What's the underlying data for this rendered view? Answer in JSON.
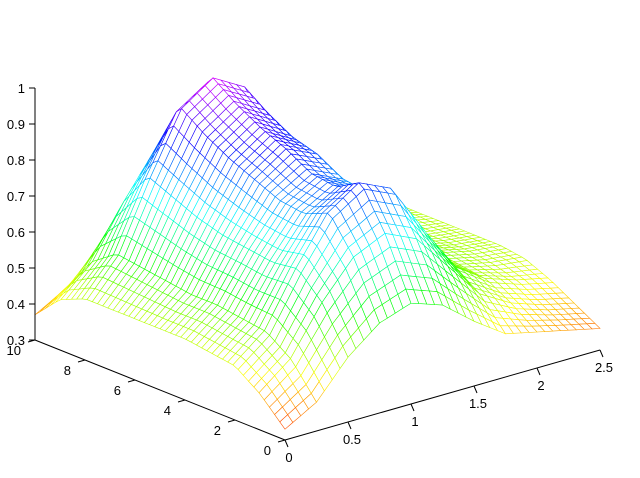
{
  "chart_data": {
    "type": "surface",
    "title": "",
    "xlabel": "",
    "ylabel": "",
    "zlabel": "",
    "colormap": "hsv",
    "grid": false,
    "x_ticks": [
      "0",
      "0.5",
      "1",
      "1.5",
      "2",
      "2.5"
    ],
    "y_ticks": [
      "0",
      "2",
      "4",
      "6",
      "8",
      "10"
    ],
    "z_ticks": [
      "0.3",
      "0.4",
      "0.5",
      "0.6",
      "0.7",
      "0.8",
      "0.9",
      "1"
    ],
    "xlim": [
      0,
      2.5
    ],
    "ylim": [
      0,
      10
    ],
    "zlim": [
      0.3,
      1
    ],
    "x": [
      0,
      0.25,
      0.5,
      0.75,
      1,
      1.25,
      1.5,
      1.75,
      2,
      2.25,
      2.5
    ],
    "y": [
      0,
      1,
      2,
      3,
      4,
      5,
      6,
      7,
      8,
      9,
      10
    ],
    "z": [
      [
        0.33,
        0.38,
        0.48,
        0.55,
        0.58,
        0.55,
        0.48,
        0.42,
        0.4,
        0.38,
        0.36
      ],
      [
        0.4,
        0.47,
        0.6,
        0.7,
        0.74,
        0.7,
        0.6,
        0.5,
        0.45,
        0.42,
        0.4
      ],
      [
        0.45,
        0.52,
        0.67,
        0.8,
        0.86,
        0.82,
        0.68,
        0.55,
        0.49,
        0.46,
        0.44
      ],
      [
        0.46,
        0.53,
        0.66,
        0.77,
        0.82,
        0.78,
        0.66,
        0.55,
        0.5,
        0.48,
        0.47
      ],
      [
        0.47,
        0.54,
        0.67,
        0.78,
        0.83,
        0.79,
        0.67,
        0.56,
        0.51,
        0.49,
        0.48
      ],
      [
        0.47,
        0.54,
        0.68,
        0.81,
        0.87,
        0.83,
        0.69,
        0.57,
        0.51,
        0.49,
        0.48
      ],
      [
        0.47,
        0.55,
        0.7,
        0.84,
        0.9,
        0.85,
        0.71,
        0.58,
        0.52,
        0.49,
        0.48
      ],
      [
        0.47,
        0.56,
        0.73,
        0.88,
        0.94,
        0.89,
        0.74,
        0.6,
        0.53,
        0.5,
        0.48
      ],
      [
        0.47,
        0.57,
        0.76,
        0.93,
        0.99,
        0.94,
        0.77,
        0.61,
        0.53,
        0.5,
        0.48
      ],
      [
        0.44,
        0.52,
        0.66,
        0.78,
        0.82,
        0.78,
        0.66,
        0.54,
        0.49,
        0.47,
        0.45
      ],
      [
        0.37,
        0.42,
        0.5,
        0.56,
        0.58,
        0.56,
        0.5,
        0.45,
        0.42,
        0.4,
        0.38
      ]
    ]
  }
}
